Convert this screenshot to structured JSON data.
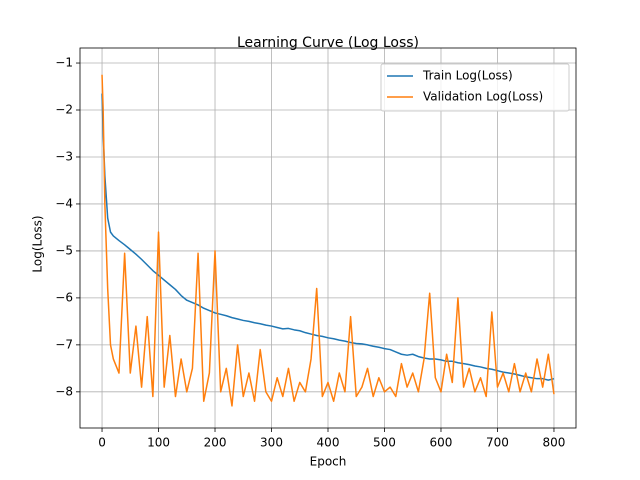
{
  "chart_data": {
    "type": "line",
    "title": "Learning Curve (Log Loss)",
    "xlabel": "Epoch",
    "ylabel": "Log(Loss)",
    "x": [
      0,
      2,
      5,
      10,
      15,
      20,
      30,
      40,
      50,
      60,
      70,
      80,
      90,
      100,
      110,
      120,
      130,
      140,
      150,
      160,
      170,
      180,
      190,
      200,
      210,
      220,
      230,
      240,
      250,
      260,
      270,
      280,
      290,
      300,
      310,
      320,
      330,
      340,
      350,
      360,
      370,
      380,
      390,
      400,
      410,
      420,
      430,
      440,
      450,
      460,
      470,
      480,
      490,
      500,
      510,
      520,
      530,
      540,
      550,
      560,
      570,
      580,
      590,
      600,
      610,
      620,
      630,
      640,
      650,
      660,
      670,
      680,
      690,
      700,
      710,
      720,
      730,
      740,
      750,
      760,
      770,
      780,
      790,
      800
    ],
    "series": [
      {
        "name": "Train Log(Loss)",
        "color": "#1f77b4",
        "values": [
          -1.65,
          -2.5,
          -3.4,
          -4.3,
          -4.6,
          -4.68,
          -4.78,
          -4.87,
          -4.97,
          -5.07,
          -5.18,
          -5.3,
          -5.42,
          -5.52,
          -5.62,
          -5.72,
          -5.82,
          -5.95,
          -6.05,
          -6.1,
          -6.15,
          -6.22,
          -6.27,
          -6.32,
          -6.35,
          -6.38,
          -6.42,
          -6.45,
          -6.48,
          -6.5,
          -6.53,
          -6.55,
          -6.58,
          -6.6,
          -6.63,
          -6.66,
          -6.65,
          -6.68,
          -6.7,
          -6.74,
          -6.77,
          -6.8,
          -6.82,
          -6.85,
          -6.87,
          -6.9,
          -6.92,
          -6.95,
          -6.97,
          -6.98,
          -7.0,
          -7.03,
          -7.05,
          -7.08,
          -7.1,
          -7.15,
          -7.2,
          -7.22,
          -7.2,
          -7.25,
          -7.28,
          -7.3,
          -7.3,
          -7.32,
          -7.35,
          -7.35,
          -7.38,
          -7.4,
          -7.42,
          -7.45,
          -7.47,
          -7.5,
          -7.52,
          -7.55,
          -7.58,
          -7.6,
          -7.62,
          -7.65,
          -7.68,
          -7.7,
          -7.72,
          -7.72,
          -7.75,
          -7.72
        ]
      },
      {
        "name": "Validation Log(Loss)",
        "color": "#ff7f0e",
        "values": [
          -1.25,
          -2.0,
          -4.0,
          -5.8,
          -7.0,
          -7.3,
          -7.6,
          -5.05,
          -7.6,
          -6.6,
          -7.9,
          -6.4,
          -8.1,
          -4.6,
          -7.9,
          -6.8,
          -8.1,
          -7.3,
          -8.0,
          -7.5,
          -5.05,
          -8.2,
          -7.6,
          -5.0,
          -8.0,
          -7.5,
          -8.3,
          -7.0,
          -8.1,
          -7.6,
          -8.2,
          -7.1,
          -8.0,
          -8.2,
          -7.7,
          -8.1,
          -7.5,
          -8.2,
          -7.8,
          -8.0,
          -7.3,
          -5.8,
          -8.1,
          -7.8,
          -8.2,
          -7.6,
          -8.0,
          -6.4,
          -8.1,
          -7.9,
          -7.5,
          -8.1,
          -7.7,
          -8.0,
          -7.9,
          -8.1,
          -7.4,
          -7.9,
          -7.6,
          -8.0,
          -7.3,
          -5.9,
          -7.7,
          -8.0,
          -7.2,
          -7.8,
          -6.0,
          -7.9,
          -7.5,
          -8.0,
          -7.7,
          -8.1,
          -6.3,
          -7.9,
          -7.6,
          -8.0,
          -7.4,
          -8.0,
          -7.6,
          -8.0,
          -7.3,
          -7.9,
          -7.2,
          -8.05
        ]
      }
    ],
    "xlim": [
      -39,
      839
    ],
    "ylim": [
      -8.77,
      -0.68
    ],
    "xticks": [
      0,
      100,
      200,
      300,
      400,
      500,
      600,
      700,
      800
    ],
    "yticks": [
      {
        "value": -1,
        "label": "−1"
      },
      {
        "value": -2,
        "label": "−2"
      },
      {
        "value": -3,
        "label": "−3"
      },
      {
        "value": -4,
        "label": "−4"
      },
      {
        "value": -5,
        "label": "−5"
      },
      {
        "value": -6,
        "label": "−6"
      },
      {
        "value": -7,
        "label": "−7"
      },
      {
        "value": -8,
        "label": "−8"
      }
    ],
    "grid": true,
    "legend": "upper right"
  }
}
